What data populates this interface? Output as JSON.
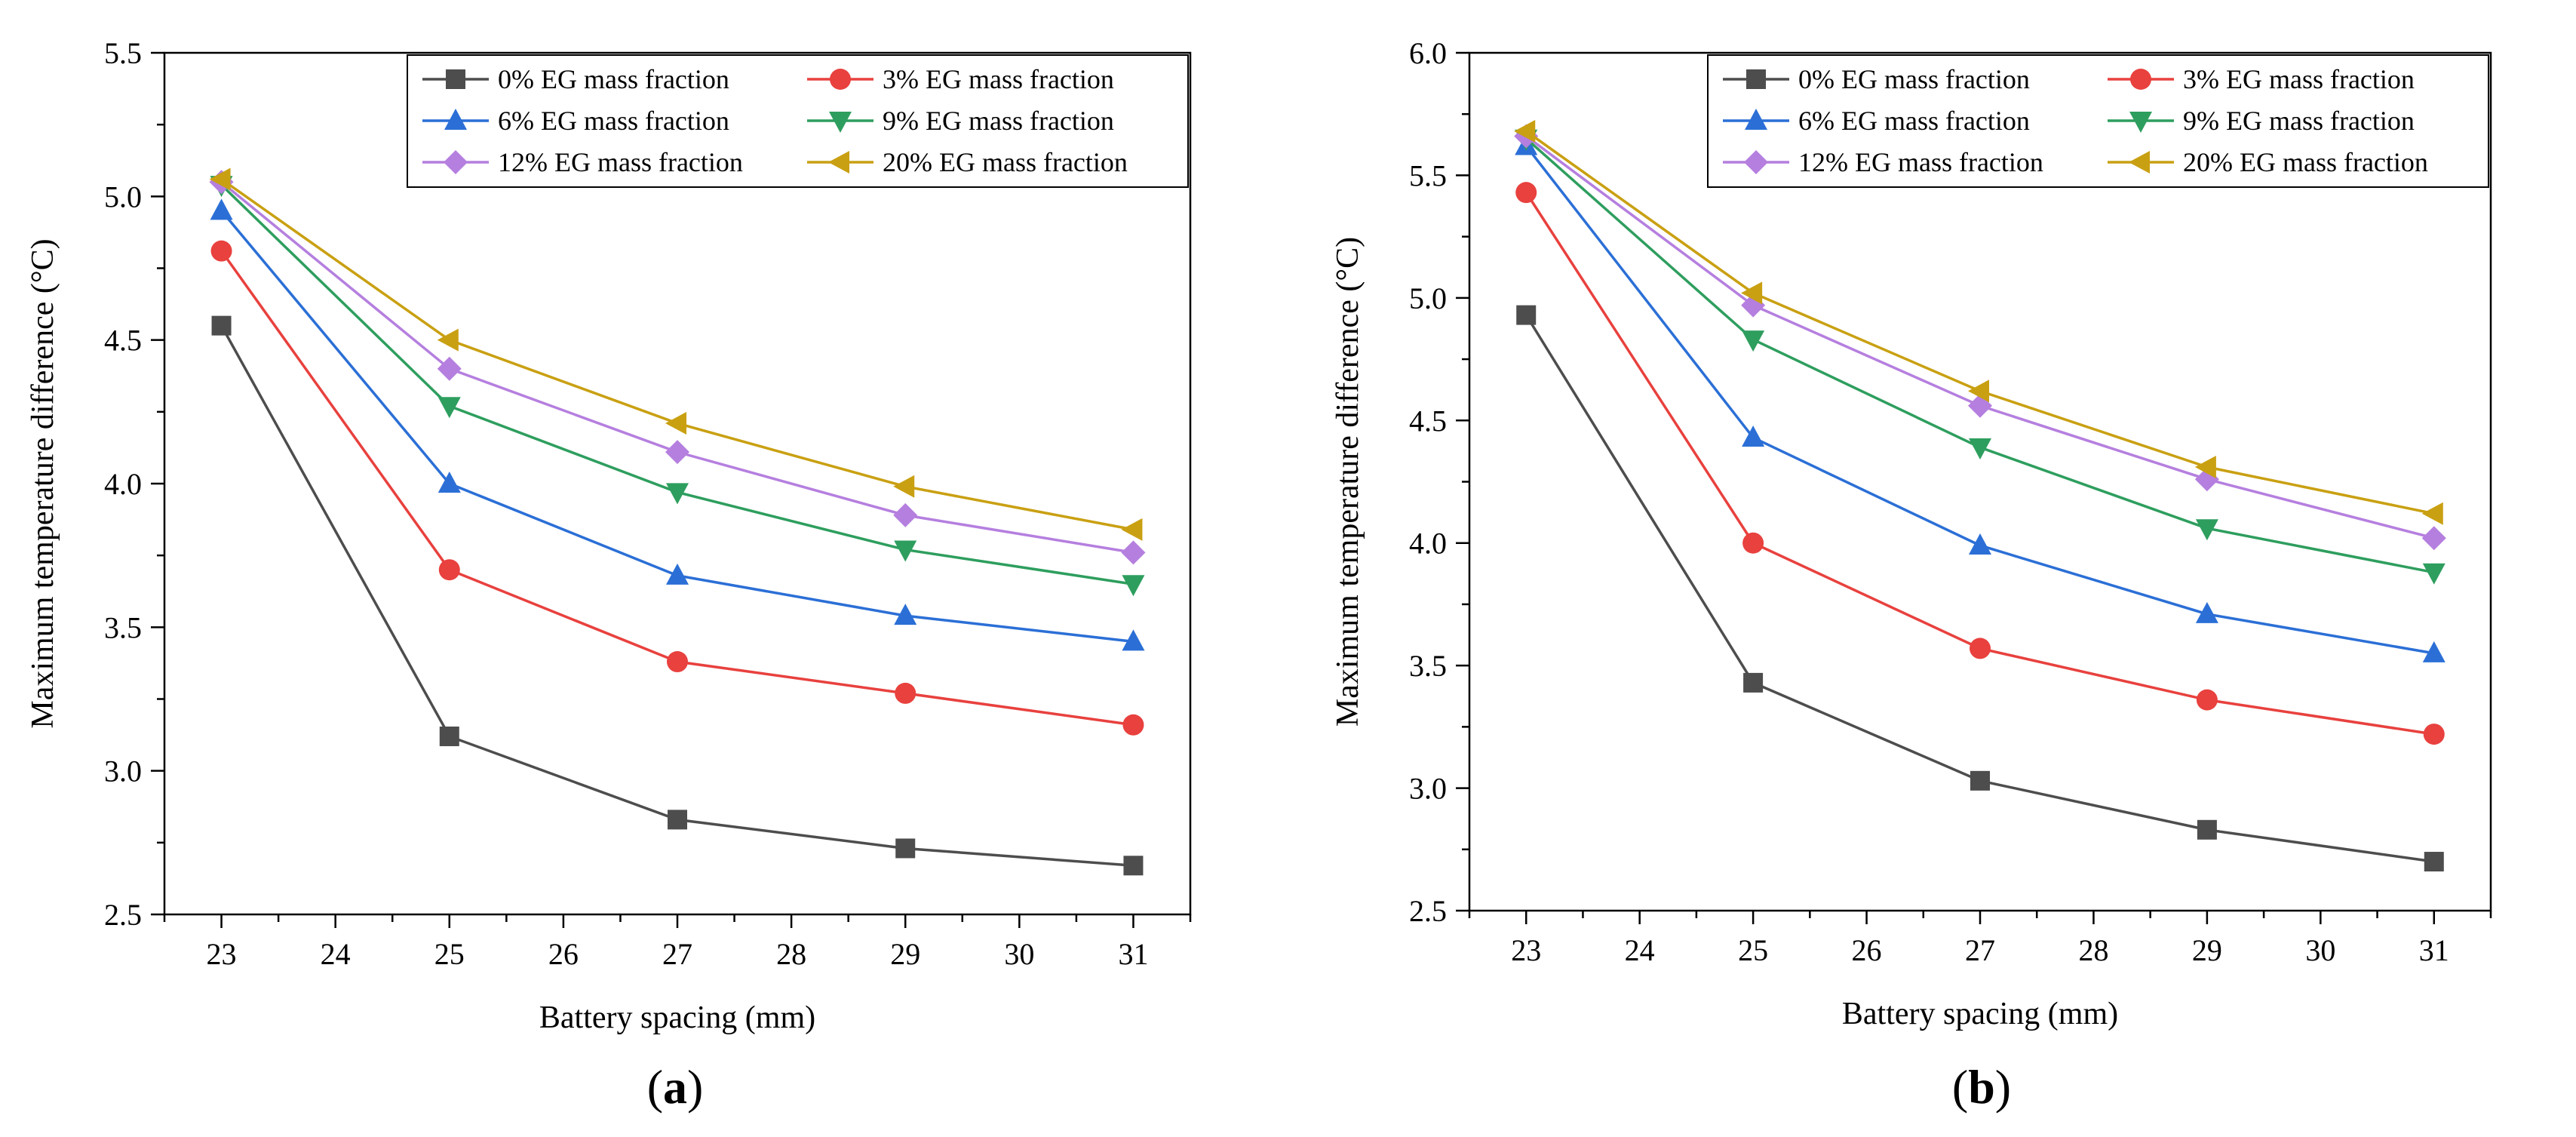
{
  "chart_data": [
    {
      "type": "line",
      "panel_label": "(a)",
      "panel_letter": "a",
      "xlabel": "Battery spacing (mm)",
      "ylabel": "Maximum temperature difference (°C)",
      "xlim": [
        22.5,
        31.5
      ],
      "ylim": [
        2.5,
        5.5
      ],
      "xticks": [
        23,
        24,
        25,
        26,
        27,
        28,
        29,
        30,
        31
      ],
      "yticks": [
        2.5,
        3.0,
        3.5,
        4.0,
        4.5,
        5.0,
        5.5
      ],
      "ytick_labels": [
        "2.5",
        "3.0",
        "3.5",
        "4.0",
        "4.5",
        "5.0",
        "5.5"
      ],
      "x": [
        23,
        25,
        27,
        29,
        31
      ],
      "legend_position": "top-right",
      "series": [
        {
          "name": "0%  EG mass fraction",
          "color": "#4d4d4d",
          "marker": "square",
          "values": [
            4.55,
            3.12,
            2.83,
            2.73,
            2.67
          ]
        },
        {
          "name": "3%  EG mass fraction",
          "color": "#e8413e",
          "marker": "circle",
          "values": [
            4.81,
            3.7,
            3.38,
            3.27,
            3.16
          ]
        },
        {
          "name": "6%  EG mass fraction",
          "color": "#2b6fd6",
          "marker": "triangle-up",
          "values": [
            4.95,
            4.0,
            3.68,
            3.54,
            3.45
          ]
        },
        {
          "name": "9%  EG mass fraction",
          "color": "#2e9e5e",
          "marker": "triangle-down",
          "values": [
            5.04,
            4.27,
            3.97,
            3.77,
            3.65
          ]
        },
        {
          "name": "12% EG mass fraction",
          "color": "#b57fdf",
          "marker": "diamond",
          "values": [
            5.05,
            4.4,
            4.11,
            3.89,
            3.76
          ]
        },
        {
          "name": "20% EG mass fraction",
          "color": "#c9a012",
          "marker": "triangle-left",
          "values": [
            5.06,
            4.5,
            4.21,
            3.99,
            3.84
          ]
        }
      ]
    },
    {
      "type": "line",
      "panel_label": "(b)",
      "panel_letter": "b",
      "xlabel": "Battery spacing (mm)",
      "ylabel": "Maximum temperature difference (°C)",
      "xlim": [
        22.5,
        31.5
      ],
      "ylim": [
        2.5,
        6.0
      ],
      "xticks": [
        23,
        24,
        25,
        26,
        27,
        28,
        29,
        30,
        31
      ],
      "yticks": [
        2.5,
        3.0,
        3.5,
        4.0,
        4.5,
        5.0,
        5.5,
        6.0
      ],
      "ytick_labels": [
        "2.5",
        "3.0",
        "3.5",
        "4.0",
        "4.5",
        "5.0",
        "5.5",
        "6.0"
      ],
      "x": [
        23,
        25,
        27,
        29,
        31
      ],
      "legend_position": "top-right",
      "series": [
        {
          "name": "0%  EG mass fraction",
          "color": "#4d4d4d",
          "marker": "square",
          "values": [
            4.93,
            3.43,
            3.03,
            2.83,
            2.7
          ]
        },
        {
          "name": "3%  EG mass fraction",
          "color": "#e8413e",
          "marker": "circle",
          "values": [
            5.43,
            4.0,
            3.57,
            3.36,
            3.22
          ]
        },
        {
          "name": "6%  EG mass fraction",
          "color": "#2b6fd6",
          "marker": "triangle-up",
          "values": [
            5.62,
            4.43,
            3.99,
            3.71,
            3.55
          ]
        },
        {
          "name": "9%  EG mass fraction",
          "color": "#2e9e5e",
          "marker": "triangle-down",
          "values": [
            5.65,
            4.83,
            4.39,
            4.06,
            3.88
          ]
        },
        {
          "name": "12% EG mass fraction",
          "color": "#b57fdf",
          "marker": "diamond",
          "values": [
            5.66,
            4.97,
            4.56,
            4.26,
            4.02
          ]
        },
        {
          "name": "20% EG mass fraction",
          "color": "#c9a012",
          "marker": "triangle-left",
          "values": [
            5.68,
            5.02,
            4.62,
            4.31,
            4.12
          ]
        }
      ]
    }
  ]
}
